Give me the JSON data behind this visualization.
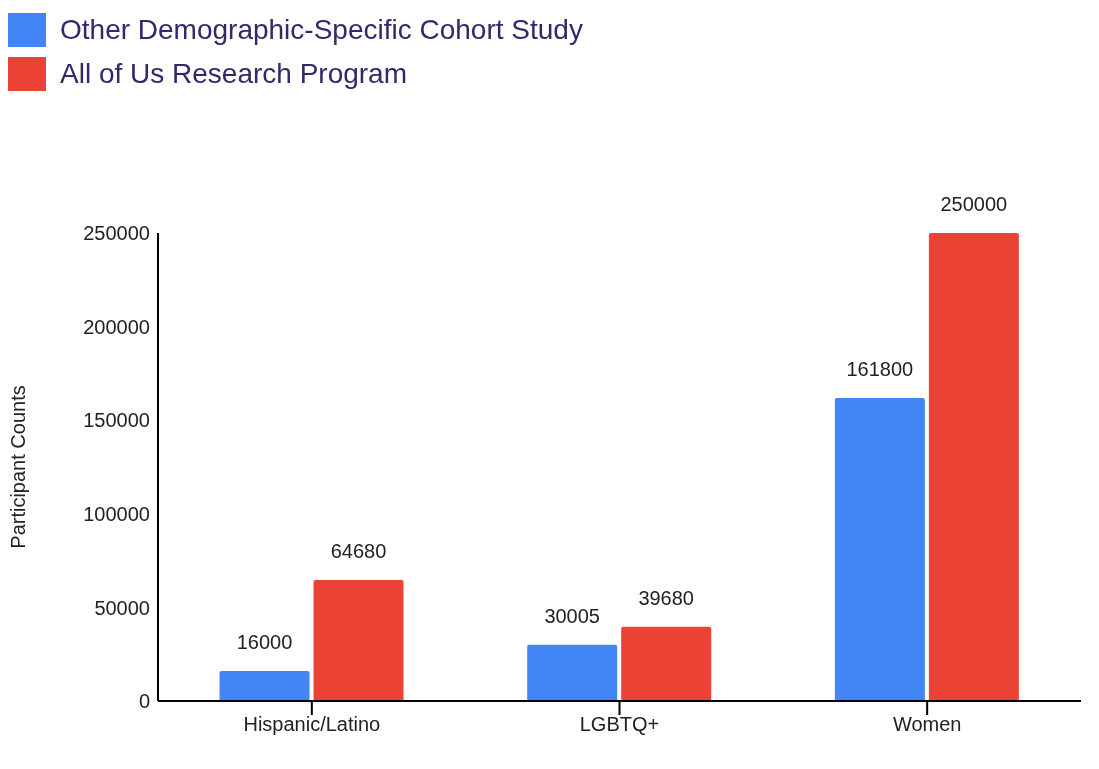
{
  "chart_data": {
    "type": "bar",
    "ylabel": "Participant Counts",
    "categories": [
      "Hispanic/Latino",
      "LGBTQ+",
      "Women"
    ],
    "series": [
      {
        "name": "Other Demographic-Specific Cohort Study",
        "color": "#4285f4",
        "values": [
          16000,
          30005,
          161800
        ]
      },
      {
        "name": "All of Us Research Program",
        "color": "#ea4335",
        "values": [
          64680,
          39680,
          250000
        ]
      }
    ],
    "ylim": [
      0,
      250000
    ],
    "yticks": [
      0,
      50000,
      100000,
      150000,
      200000,
      250000
    ],
    "grid": false,
    "legend": "top left",
    "data_labels": true
  }
}
